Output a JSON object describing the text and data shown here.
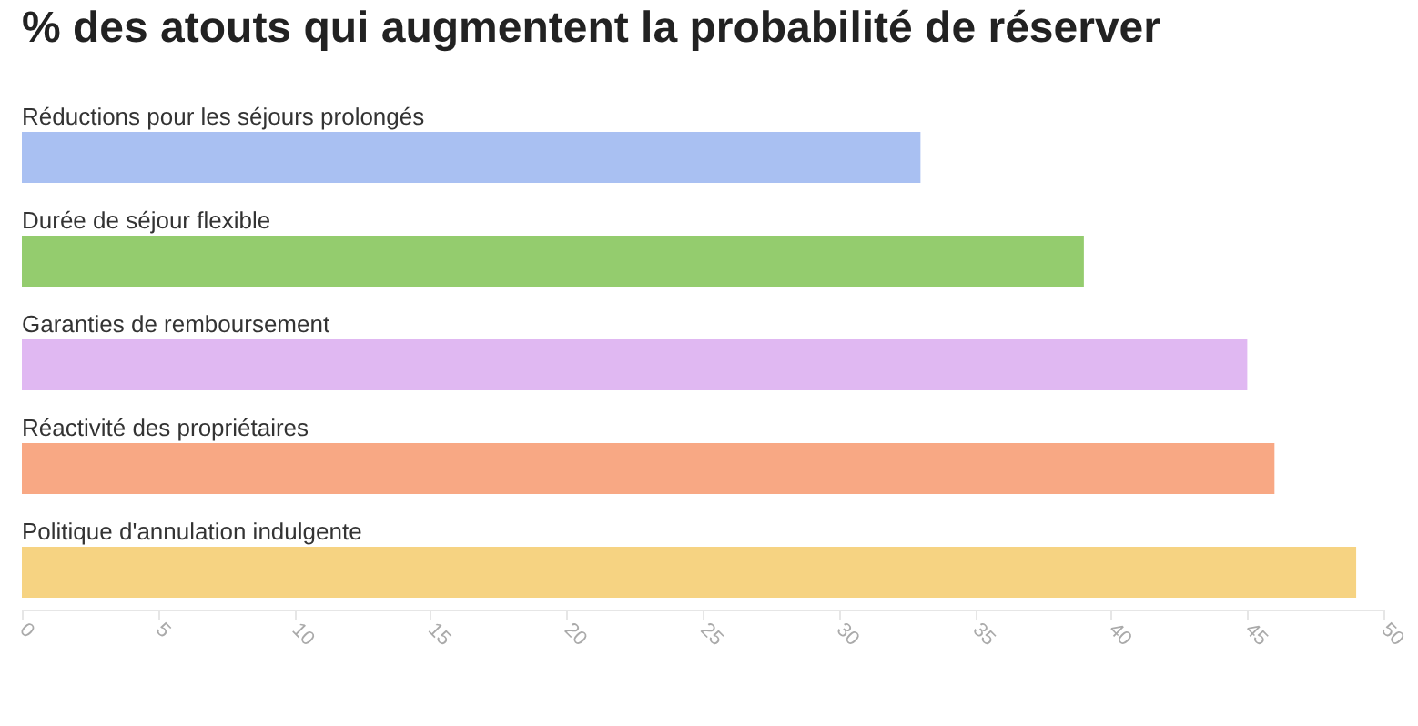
{
  "chart_data": {
    "type": "bar",
    "orientation": "horizontal",
    "title": "% des atouts qui augmentent la probabilité de réserver",
    "categories": [
      "Réductions pour les séjours prolongés",
      "Durée de séjour flexible",
      "Garanties de remboursement",
      "Réactivité des propriétaires",
      "Politique d'annulation indulgente"
    ],
    "values": [
      33,
      39,
      45,
      46,
      49
    ],
    "colors": [
      "#a9c0f2",
      "#94cc6e",
      "#e0b8f2",
      "#f8a884",
      "#f6d382"
    ],
    "xlim": [
      0,
      50
    ],
    "xticks": [
      0,
      5,
      10,
      15,
      20,
      25,
      30,
      35,
      40,
      45,
      50
    ]
  }
}
